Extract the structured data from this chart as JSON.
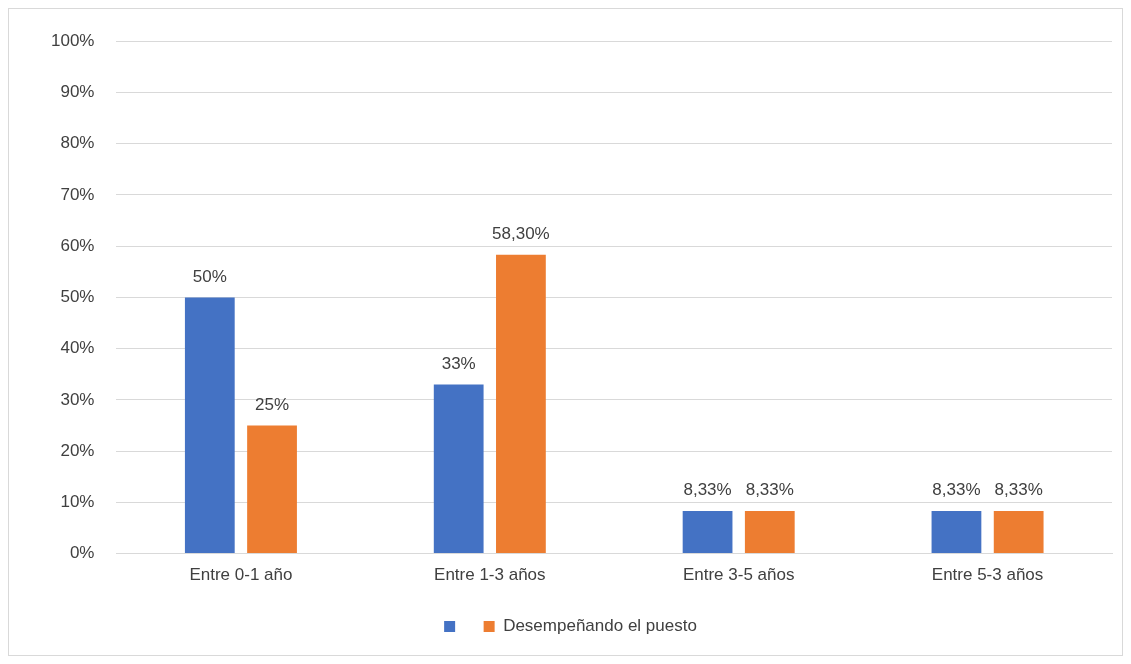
{
  "chart_data": {
    "type": "bar",
    "categories": [
      "Entre 0-1 año",
      "Entre 1-3 años",
      "Entre 3-5 años",
      "Entre 5-3 años"
    ],
    "series": [
      {
        "color": "#4472c4",
        "values": [
          50,
          33,
          8.33,
          8.33
        ],
        "value_labels": [
          "50%",
          "33%",
          "8,33%",
          "8,33%"
        ]
      },
      {
        "name": "Desempeñando el puesto",
        "color": "#ed7d31",
        "values": [
          25,
          58.3,
          8.33,
          8.33
        ],
        "value_labels": [
          "25%",
          "58,30%",
          "8,33%",
          "8,33%"
        ]
      }
    ],
    "ylim": [
      0,
      100
    ],
    "yticks": [
      {
        "value": 0,
        "label": "0%"
      },
      {
        "value": 10,
        "label": "10%"
      },
      {
        "value": 20,
        "label": "20%"
      },
      {
        "value": 30,
        "label": "30%"
      },
      {
        "value": 40,
        "label": "40%"
      },
      {
        "value": 50,
        "label": "50%"
      },
      {
        "value": 60,
        "label": "60%"
      },
      {
        "value": 70,
        "label": "70%"
      },
      {
        "value": 80,
        "label": "80%"
      },
      {
        "value": 90,
        "label": "90%"
      },
      {
        "value": 100,
        "label": "100%"
      }
    ],
    "grid": "y",
    "legend": "bottom"
  }
}
